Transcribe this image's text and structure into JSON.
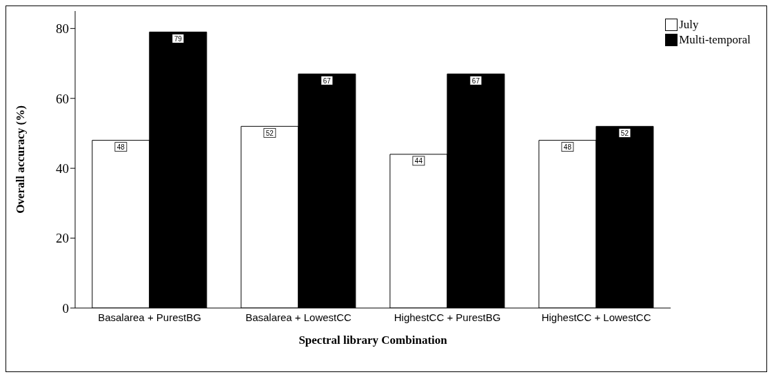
{
  "chart_data": {
    "type": "bar",
    "xlabel": "Spectral library Combination",
    "ylabel": "Overall accuracy (%)",
    "categories": [
      "Basalarea + PurestBG",
      "Basalarea + LowestCC",
      "HighestCC + PurestBG",
      "HighestCC + LowestCC"
    ],
    "series": [
      {
        "name": "July",
        "color": "#ffffff",
        "values": [
          48,
          52,
          44,
          48
        ]
      },
      {
        "name": "Multi-temporal",
        "color": "#000000",
        "values": [
          79,
          67,
          67,
          52
        ]
      }
    ],
    "ylim": [
      0,
      85
    ],
    "yticks": [
      0,
      20,
      40,
      60,
      80
    ],
    "grid": false,
    "legend": "top right",
    "data_labels": true
  }
}
